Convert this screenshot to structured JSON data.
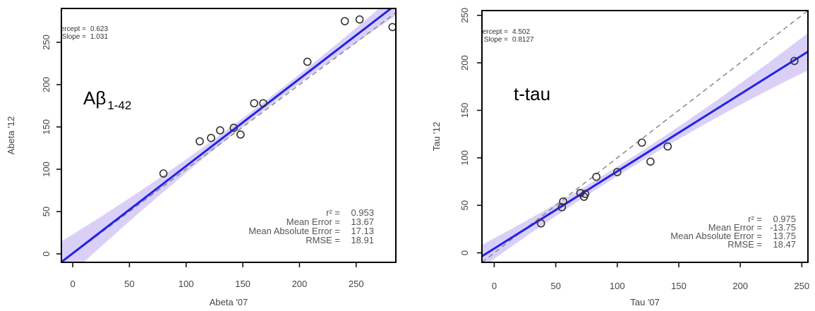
{
  "chart_data": [
    {
      "type": "scatter",
      "title": "Aβ",
      "title_sub": "1-42",
      "xlabel": "Abeta '07",
      "ylabel": "Abeta '12",
      "xlim": [
        -10,
        285
      ],
      "ylim": [
        -10,
        290
      ],
      "xticks": [
        0,
        50,
        100,
        150,
        200,
        250
      ],
      "yticks": [
        0,
        50,
        100,
        150,
        200,
        250
      ],
      "points": [
        [
          80,
          95
        ],
        [
          112,
          133
        ],
        [
          122,
          137
        ],
        [
          130,
          146
        ],
        [
          142,
          149
        ],
        [
          148,
          141
        ],
        [
          160,
          178
        ],
        [
          168,
          178
        ],
        [
          207,
          227
        ],
        [
          240,
          275
        ],
        [
          253,
          277
        ],
        [
          282,
          268
        ]
      ],
      "fit": {
        "intercept": 0.623,
        "slope": 1.031
      },
      "fit_text": {
        "intercept_label": "Intercept =",
        "intercept_value": "0.623",
        "slope_label": "Slope =",
        "slope_value": "1.031"
      },
      "stats": [
        {
          "label": "r² =",
          "value": "0.953"
        },
        {
          "label": "Mean Error =",
          "value": "13.67"
        },
        {
          "label": "Mean Absolute Error =",
          "value": "17.13"
        },
        {
          "label": "RMSE =",
          "value": "18.91"
        }
      ]
    },
    {
      "type": "scatter",
      "title": "t-tau",
      "xlabel": "Tau '07",
      "ylabel": "Tau '12",
      "xlim": [
        -10,
        255
      ],
      "ylim": [
        -10,
        255
      ],
      "xticks": [
        0,
        50,
        100,
        150,
        200,
        250
      ],
      "yticks": [
        0,
        50,
        100,
        150,
        200,
        250
      ],
      "points": [
        [
          38,
          31
        ],
        [
          55,
          48
        ],
        [
          56,
          54
        ],
        [
          70,
          63
        ],
        [
          73,
          59
        ],
        [
          74,
          62
        ],
        [
          83,
          80
        ],
        [
          100,
          85
        ],
        [
          120,
          116
        ],
        [
          127,
          96
        ],
        [
          141,
          112
        ],
        [
          244,
          202
        ]
      ],
      "fit": {
        "intercept": 4.502,
        "slope": 0.8127
      },
      "fit_text": {
        "intercept_label": "Intercept =",
        "intercept_value": "4.502",
        "slope_label": "Slope =",
        "slope_value": "0.8127"
      },
      "stats": [
        {
          "label": "r² =",
          "value": "0.975"
        },
        {
          "label": "Mean Error =",
          "value": "-13.75"
        },
        {
          "label": "Mean Absolute Error =",
          "value": "13.75"
        },
        {
          "label": "RMSE =",
          "value": "18.47"
        }
      ]
    }
  ],
  "colors": {
    "fit_line": "#2323e6",
    "band": "#cdc0f4",
    "identity": "#888888",
    "points": "#333333"
  }
}
